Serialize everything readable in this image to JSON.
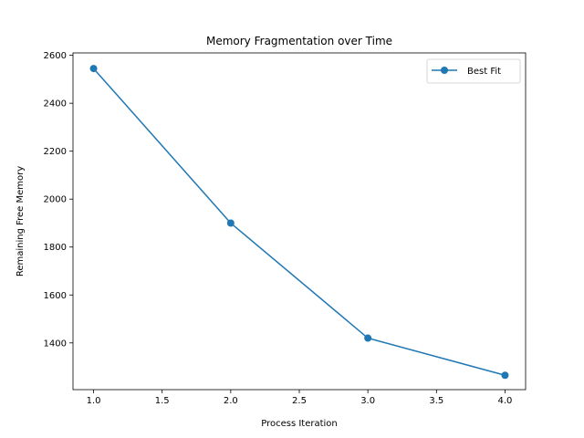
{
  "chart_data": {
    "type": "line",
    "title": "Memory Fragmentation over Time",
    "xlabel": "Process Iteration",
    "ylabel": "Remaining Free Memory",
    "xlim": [
      0.85,
      4.15
    ],
    "ylim": [
      1205,
      2610
    ],
    "x_ticks": [
      1.0,
      1.5,
      2.0,
      2.5,
      3.0,
      3.5,
      4.0
    ],
    "x_tick_labels": [
      "1.0",
      "1.5",
      "2.0",
      "2.5",
      "3.0",
      "3.5",
      "4.0"
    ],
    "y_ticks": [
      1400,
      1600,
      1800,
      2000,
      2200,
      2400,
      2600
    ],
    "y_tick_labels": [
      "1400",
      "1600",
      "1800",
      "2000",
      "2200",
      "2400",
      "2600"
    ],
    "grid": false,
    "legend_position": "top-right",
    "series": [
      {
        "name": "Best Fit",
        "color": "#1f77b4",
        "marker": "circle",
        "x": [
          1,
          2,
          3,
          4
        ],
        "y": [
          2545,
          1900,
          1420,
          1265
        ]
      }
    ]
  }
}
